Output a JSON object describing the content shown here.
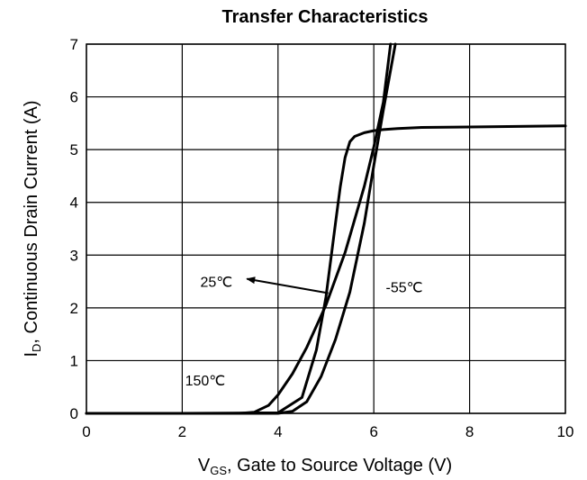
{
  "chart_data": {
    "type": "line",
    "title": "Transfer Characteristics",
    "xlabel": {
      "main": "V",
      "sub": "GS",
      "rest": ", Gate to Source Voltage (V)"
    },
    "ylabel": {
      "main": "I",
      "sub": "D",
      "rest": ", Continuous Drain Current (A)"
    },
    "xlim": [
      0,
      10
    ],
    "ylim": [
      0,
      7
    ],
    "xticks": [
      0,
      2,
      4,
      6,
      8,
      10
    ],
    "yticks": [
      0,
      1,
      2,
      3,
      4,
      5,
      6,
      7
    ],
    "grid": true,
    "legend": "none",
    "colors": {
      "line": "#000000",
      "grid": "#000000",
      "background": "#ffffff"
    },
    "series": [
      {
        "x": [
          0,
          2,
          4,
          4.5,
          4.8,
          5.0,
          5.2,
          5.3,
          5.4,
          5.5,
          5.6,
          5.8,
          6.0,
          6.2,
          6.5,
          7,
          8,
          9,
          10
        ],
        "values": [
          0,
          0,
          0.01,
          0.3,
          1.2,
          2.2,
          3.6,
          4.3,
          4.85,
          5.15,
          5.25,
          5.32,
          5.36,
          5.38,
          5.4,
          5.42,
          5.43,
          5.44,
          5.45
        ]
      },
      {
        "x": [
          0,
          3.2,
          3.5,
          3.8,
          4.0,
          4.3,
          4.6,
          5.0,
          5.4,
          5.8,
          6.0,
          6.2,
          6.35
        ],
        "values": [
          0,
          0,
          0.02,
          0.15,
          0.35,
          0.75,
          1.25,
          2.05,
          3.05,
          4.3,
          5.05,
          5.9,
          7.0
        ]
      },
      {
        "x": [
          0,
          4.0,
          4.3,
          4.6,
          4.9,
          5.2,
          5.5,
          5.8,
          6.0,
          6.2,
          6.45
        ],
        "values": [
          0,
          0,
          0.04,
          0.22,
          0.7,
          1.4,
          2.3,
          3.6,
          4.7,
          5.75,
          7.0
        ]
      }
    ],
    "annotations": [
      {
        "text": "25℃",
        "x": 3.05,
        "y": 2.5,
        "arrow_from": [
          5.05,
          2.28
        ],
        "arrow_to": [
          3.35,
          2.55
        ]
      },
      {
        "text": "-55℃",
        "x": 6.25,
        "y": 2.4
      },
      {
        "text": "150℃",
        "x": 2.9,
        "y": 0.63
      }
    ]
  }
}
